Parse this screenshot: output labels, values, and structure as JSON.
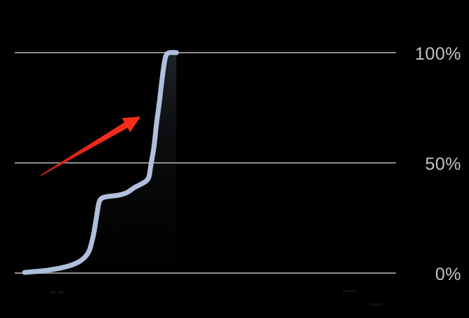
{
  "chart_data": {
    "type": "line",
    "title": "",
    "xlabel": "",
    "ylabel": "",
    "ylim": [
      0,
      100
    ],
    "x_axis_tick_labels": "none",
    "legend": "none",
    "grid": "horizontal",
    "yticks": [
      {
        "value": 100,
        "label": "100%"
      },
      {
        "value": 50,
        "label": "50%"
      },
      {
        "value": 0,
        "label": "0%"
      }
    ],
    "series": [
      {
        "name": "percentage-curve",
        "points": [
          [
            2.6,
            0.3
          ],
          [
            7.2,
            1.0
          ],
          [
            11.8,
            2.2
          ],
          [
            15.5,
            4.0
          ],
          [
            17.9,
            6.4
          ],
          [
            19.5,
            10.0
          ],
          [
            20.6,
            17.0
          ],
          [
            21.4,
            25.0
          ],
          [
            22.1,
            32.0
          ],
          [
            23.0,
            34.1
          ],
          [
            24.7,
            34.8
          ],
          [
            27.4,
            35.4
          ],
          [
            29.5,
            36.6
          ],
          [
            31.5,
            38.9
          ],
          [
            33.2,
            40.4
          ],
          [
            34.4,
            41.7
          ],
          [
            35.2,
            43.6
          ],
          [
            35.7,
            49.0
          ],
          [
            36.5,
            57.0
          ],
          [
            37.2,
            68.0
          ],
          [
            37.9,
            77.0
          ],
          [
            38.5,
            86.0
          ],
          [
            39.2,
            95.0
          ],
          [
            39.7,
            98.8
          ],
          [
            40.6,
            100.0
          ],
          [
            42.4,
            100.0
          ]
        ]
      }
    ],
    "annotations": [
      {
        "type": "arrow",
        "description": "red arrow pointing at the steep rise of the curve",
        "x1_pct": 6.8,
        "y1_pct": 44.3,
        "x2_pct": 33.0,
        "y2_pct": 71.0
      }
    ],
    "colors": {
      "background": "#000000",
      "line": "#b0c0dc",
      "fill_top": "rgba(166,186,220,0.18)",
      "gridline": "#8c8c8c",
      "tick_label": "#c3c3c3",
      "arrow_head": "#fb2f1e",
      "arrow_tail": "#c62017"
    }
  }
}
